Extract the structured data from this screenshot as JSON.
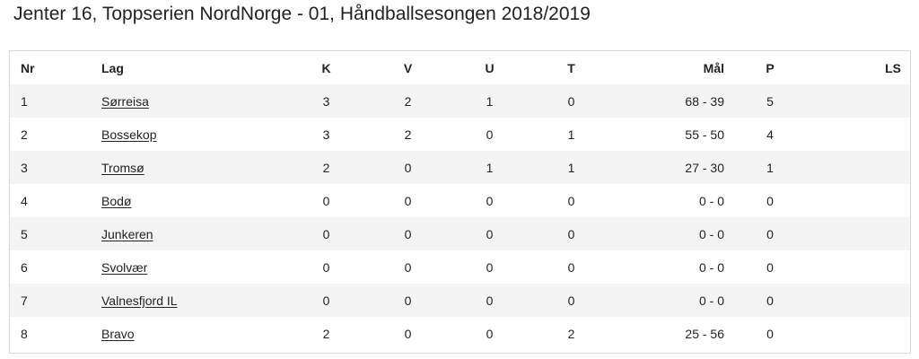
{
  "title": "Jenter 16, Toppserien NordNorge - 01, Håndballsesongen 2018/2019",
  "table": {
    "headers": {
      "nr": "Nr",
      "team": "Lag",
      "played": "K",
      "won": "V",
      "drawn": "U",
      "lost": "T",
      "goals": "Mål",
      "points": "P",
      "ls": "LS"
    },
    "rows": [
      {
        "nr": "1",
        "team": "Sørreisa",
        "played": "3",
        "won": "2",
        "drawn": "1",
        "lost": "0",
        "goals": "68 - 39",
        "points": "5",
        "ls": ""
      },
      {
        "nr": "2",
        "team": "Bossekop",
        "played": "3",
        "won": "2",
        "drawn": "0",
        "lost": "1",
        "goals": "55 - 50",
        "points": "4",
        "ls": ""
      },
      {
        "nr": "3",
        "team": "Tromsø",
        "played": "2",
        "won": "0",
        "drawn": "1",
        "lost": "1",
        "goals": "27 - 30",
        "points": "1",
        "ls": ""
      },
      {
        "nr": "4",
        "team": "Bodø",
        "played": "0",
        "won": "0",
        "drawn": "0",
        "lost": "0",
        "goals": "0 - 0",
        "points": "0",
        "ls": ""
      },
      {
        "nr": "5",
        "team": "Junkeren",
        "played": "0",
        "won": "0",
        "drawn": "0",
        "lost": "0",
        "goals": "0 - 0",
        "points": "0",
        "ls": ""
      },
      {
        "nr": "6",
        "team": "Svolvær",
        "played": "0",
        "won": "0",
        "drawn": "0",
        "lost": "0",
        "goals": "0 - 0",
        "points": "0",
        "ls": ""
      },
      {
        "nr": "7",
        "team": "Valnesfjord IL",
        "played": "0",
        "won": "0",
        "drawn": "0",
        "lost": "0",
        "goals": "0 - 0",
        "points": "0",
        "ls": ""
      },
      {
        "nr": "8",
        "team": "Bravo",
        "played": "2",
        "won": "0",
        "drawn": "0",
        "lost": "2",
        "goals": "25 - 56",
        "points": "0",
        "ls": ""
      }
    ]
  }
}
